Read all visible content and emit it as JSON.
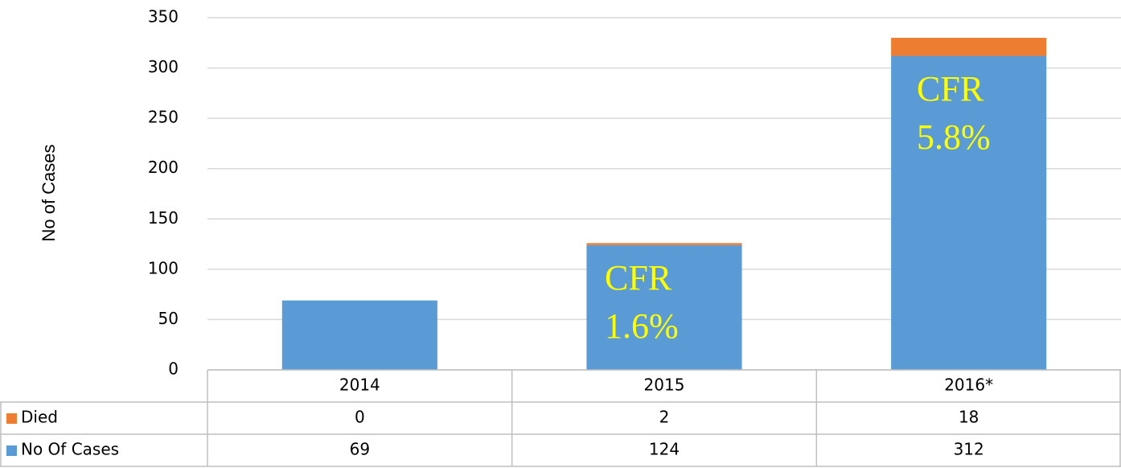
{
  "chart_data": {
    "type": "bar",
    "stacked": true,
    "y_label": "No of Cases",
    "categories": [
      "2014",
      "2015",
      "2016*"
    ],
    "series": [
      {
        "name": "Died",
        "color": "#ed7d31",
        "values": [
          0,
          2,
          18
        ]
      },
      {
        "name": "No Of Cases",
        "color": "#5b9bd5",
        "values": [
          69,
          124,
          312
        ]
      }
    ],
    "ylim": [
      0,
      350
    ],
    "yticks": [
      0,
      50,
      100,
      150,
      200,
      250,
      300,
      350
    ],
    "grid": true,
    "annotations": [
      [
        "CFR",
        "1.6%"
      ],
      [
        "CFR",
        "5.8%"
      ]
    ],
    "data_table": true
  }
}
